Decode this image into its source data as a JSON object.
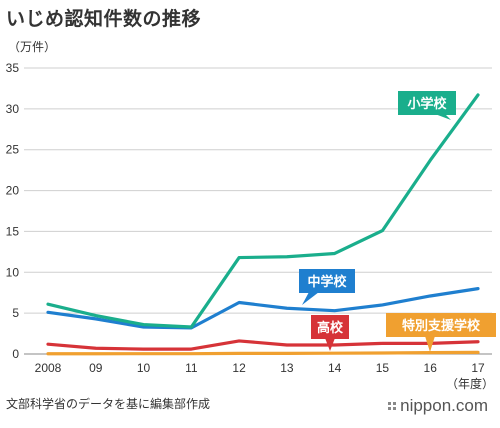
{
  "title": "いじめ認知件数の推移",
  "source": "文部科学省のデータを基に編集部作成",
  "brand": "nippon.com",
  "chart_data": {
    "type": "line",
    "y_unit": "（万件）",
    "x_unit": "（年度）",
    "x": [
      "2008",
      "09",
      "10",
      "11",
      "12",
      "13",
      "14",
      "15",
      "16",
      "17"
    ],
    "ylim": [
      0,
      35
    ],
    "yticks": [
      0,
      5,
      10,
      15,
      20,
      25,
      30,
      35
    ],
    "grid": true,
    "series": [
      {
        "name": "小学校",
        "color": "#1aae8c",
        "values": [
          6.1,
          4.7,
          3.6,
          3.3,
          11.8,
          11.9,
          12.3,
          15.1,
          23.7,
          31.7
        ],
        "x_index": [
          0,
          1,
          2,
          3,
          4,
          5,
          6,
          7,
          8,
          9
        ]
      },
      {
        "name": "中学校",
        "color": "#1f7fcf",
        "values": [
          5.1,
          4.3,
          3.3,
          3.2,
          6.3,
          5.6,
          5.3,
          6.0,
          7.1,
          8.0
        ],
        "x_index": [
          0,
          1,
          2,
          3,
          4,
          5,
          6,
          7,
          8,
          9
        ]
      },
      {
        "name": "高校",
        "color": "#d63338",
        "values": [
          1.2,
          0.7,
          0.6,
          0.6,
          1.6,
          1.1,
          1.1,
          1.3,
          1.3,
          1.5
        ],
        "x_index": [
          0,
          1,
          2,
          3,
          4,
          5,
          6,
          7,
          8,
          9
        ]
      },
      {
        "name": "特別支援学校",
        "color": "#f0a030",
        "values": [
          0.03,
          0.03,
          0.04,
          0.04,
          0.08,
          0.08,
          0.1,
          0.12,
          0.17,
          0.2
        ],
        "x_index": [
          0,
          1,
          2,
          3,
          4,
          5,
          6,
          7,
          8,
          9
        ]
      }
    ]
  }
}
